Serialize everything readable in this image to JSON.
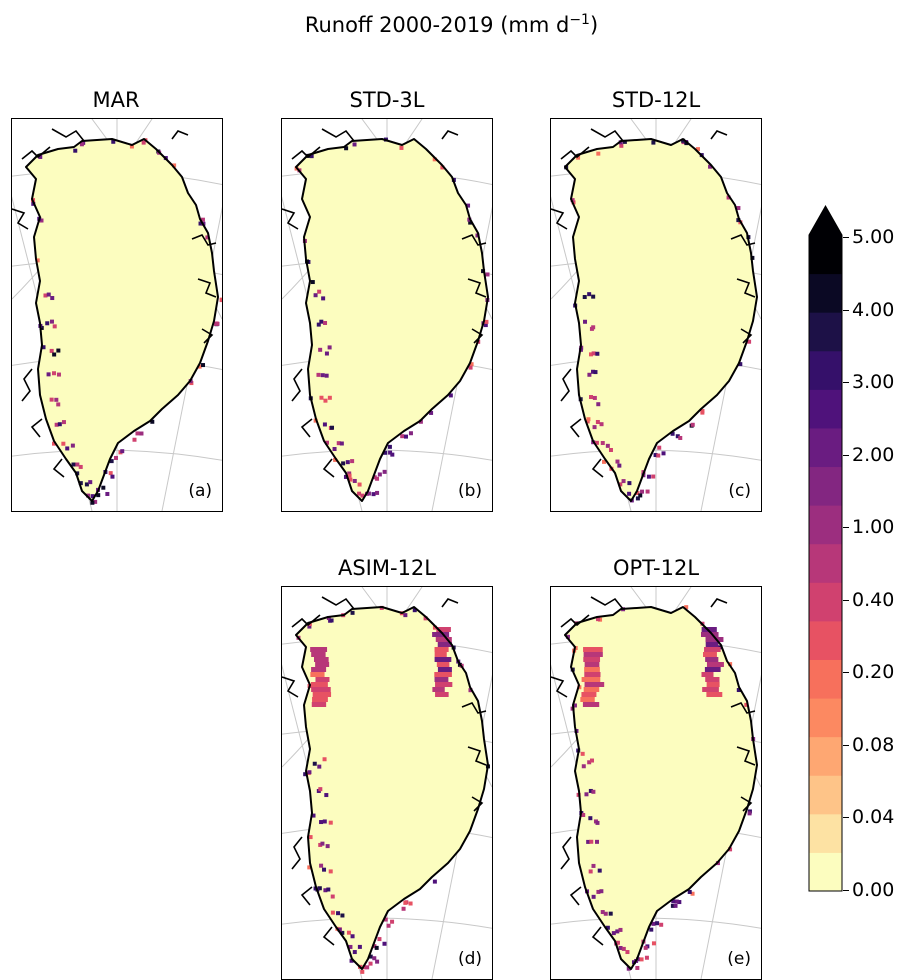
{
  "figure": {
    "title": "Runoff 2000-2019 (mm d",
    "title_unit_sup": "−1",
    "title_close": ")"
  },
  "panels": [
    {
      "title": "MAR",
      "letter": "(a)"
    },
    {
      "title": "STD-3L",
      "letter": "(b)"
    },
    {
      "title": "STD-12L",
      "letter": "(c)"
    },
    {
      "title": "ASIM-12L",
      "letter": "(d)"
    },
    {
      "title": "OPT-12L",
      "letter": "(e)"
    }
  ],
  "colorbar": {
    "ticks": [
      "5.00",
      "4.00",
      "3.00",
      "2.00",
      "1.00",
      "0.40",
      "0.20",
      "0.08",
      "0.04",
      "0.00"
    ],
    "extend": "max",
    "colors": [
      "#fcfdbf",
      "#fde2a3",
      "#fec488",
      "#fea772",
      "#fc8961",
      "#f7705c",
      "#e75263",
      "#d0416f",
      "#b73779",
      "#9c2e7f",
      "#832681",
      "#6a1c81",
      "#4f127b",
      "#35106a",
      "#1d1147",
      "#0b0924",
      "#000004"
    ]
  },
  "chart_data": [
    {
      "type": "heatmap",
      "title": "MAR",
      "annotation": "(a)",
      "variable": "Runoff 2000-2019",
      "units": "mm d-1",
      "colorbar_ticks": [
        0.0,
        0.04,
        0.08,
        0.2,
        0.4,
        1.0,
        2.0,
        3.0,
        4.0,
        5.0
      ]
    },
    {
      "type": "heatmap",
      "title": "STD-3L",
      "annotation": "(b)",
      "variable": "Runoff 2000-2019",
      "units": "mm d-1",
      "colorbar_ticks": [
        0.0,
        0.04,
        0.08,
        0.2,
        0.4,
        1.0,
        2.0,
        3.0,
        4.0,
        5.0
      ]
    },
    {
      "type": "heatmap",
      "title": "STD-12L",
      "annotation": "(c)",
      "variable": "Runoff 2000-2019",
      "units": "mm d-1",
      "colorbar_ticks": [
        0.0,
        0.04,
        0.08,
        0.2,
        0.4,
        1.0,
        2.0,
        3.0,
        4.0,
        5.0
      ]
    },
    {
      "type": "heatmap",
      "title": "ASIM-12L",
      "annotation": "(d)",
      "variable": "Runoff 2000-2019",
      "units": "mm d-1",
      "colorbar_ticks": [
        0.0,
        0.04,
        0.08,
        0.2,
        0.4,
        1.0,
        2.0,
        3.0,
        4.0,
        5.0
      ]
    },
    {
      "type": "heatmap",
      "title": "OPT-12L",
      "annotation": "(e)",
      "variable": "Runoff 2000-2019",
      "units": "mm d-1",
      "colorbar_ticks": [
        0.0,
        0.04,
        0.08,
        0.2,
        0.4,
        1.0,
        2.0,
        3.0,
        4.0,
        5.0
      ]
    }
  ]
}
